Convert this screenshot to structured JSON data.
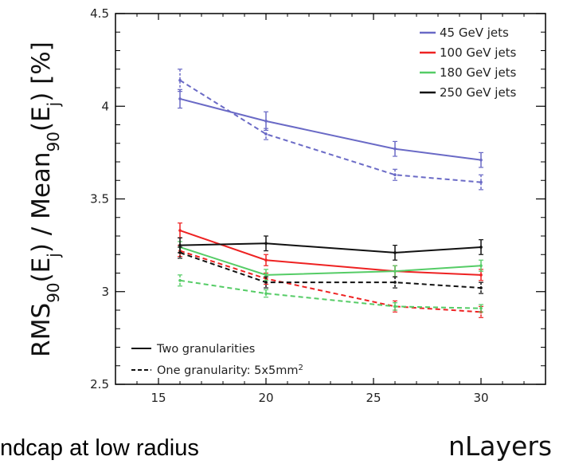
{
  "chart_data": {
    "type": "line",
    "xlabel": "nLayers",
    "ylabel_parts": [
      "RMS",
      "90",
      "(E",
      "j",
      ") / Mean",
      "90",
      "(E",
      "j",
      ") [%]"
    ],
    "xlim": [
      13,
      33
    ],
    "ylim": [
      2.5,
      4.5
    ],
    "x_ticks": [
      15,
      20,
      25,
      30
    ],
    "y_ticks": [
      "2.5",
      "3",
      "3.5",
      "4",
      "4.5"
    ],
    "grid": false,
    "legend_position": "top-right",
    "x": [
      16,
      20,
      26,
      30
    ],
    "series": [
      {
        "name": "45 GeV jets",
        "color": "#6a6ac6",
        "style": "solid",
        "values": [
          4.04,
          3.92,
          3.77,
          3.71
        ],
        "errors": [
          0.05,
          0.05,
          0.04,
          0.04
        ]
      },
      {
        "name": "45 GeV jets",
        "color": "#6a6ac6",
        "style": "dashed",
        "values": [
          4.14,
          3.85,
          3.63,
          3.59
        ],
        "errors": [
          0.06,
          0.03,
          0.03,
          0.04
        ]
      },
      {
        "name": "100 GeV jets",
        "color": "#ee2222",
        "style": "solid",
        "values": [
          3.33,
          3.17,
          3.11,
          3.09
        ],
        "errors": [
          0.04,
          0.03,
          0.03,
          0.03
        ]
      },
      {
        "name": "100 GeV jets",
        "color": "#ee2222",
        "style": "dashed",
        "values": [
          3.22,
          3.07,
          2.92,
          2.89
        ],
        "errors": [
          0.03,
          0.03,
          0.03,
          0.03
        ]
      },
      {
        "name": "180 GeV jets",
        "color": "#55cc66",
        "style": "solid",
        "values": [
          3.24,
          3.09,
          3.11,
          3.14
        ],
        "errors": [
          0.03,
          0.03,
          0.03,
          0.03
        ]
      },
      {
        "name": "180 GeV jets",
        "color": "#55cc66",
        "style": "dashed",
        "values": [
          3.06,
          2.99,
          2.92,
          2.91
        ],
        "errors": [
          0.03,
          0.02,
          0.02,
          0.02
        ]
      },
      {
        "name": "250 GeV jets",
        "color": "#111111",
        "style": "solid",
        "values": [
          3.25,
          3.26,
          3.21,
          3.24
        ],
        "errors": [
          0.04,
          0.04,
          0.04,
          0.04
        ]
      },
      {
        "name": "250 GeV jets",
        "color": "#111111",
        "style": "dashed",
        "values": [
          3.21,
          3.05,
          3.05,
          3.02
        ],
        "errors": [
          0.03,
          0.03,
          0.03,
          0.03
        ]
      }
    ],
    "legend": [
      {
        "label": "45 GeV jets",
        "color": "#6a6ac6"
      },
      {
        "label": "100 GeV jets",
        "color": "#ee2222"
      },
      {
        "label": "180 GeV jets",
        "color": "#55cc66"
      },
      {
        "label": "250 GeV jets",
        "color": "#111111"
      }
    ],
    "style_legend": [
      {
        "label": "Two granularities",
        "style": "solid"
      },
      {
        "label": "One granularity: 5x5mm",
        "superscript": "2",
        "style": "dashed"
      }
    ]
  },
  "caption": "ndcap at low radius"
}
